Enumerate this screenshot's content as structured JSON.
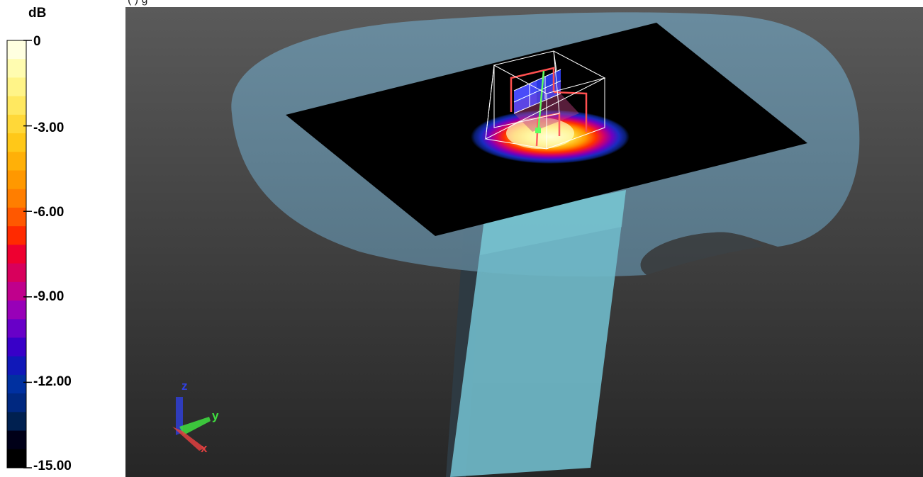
{
  "header": {
    "text": "(         )        g"
  },
  "legend": {
    "unit": "dB",
    "labels": [
      "0",
      "-3.00",
      "-6.00",
      "-9.00",
      "-12.00",
      "-15.00"
    ],
    "colors": [
      "#ffffe0",
      "#fffcb0",
      "#fff488",
      "#ffe860",
      "#ffd838",
      "#ffc818",
      "#ffb008",
      "#ff9800",
      "#ff7e00",
      "#ff5800",
      "#ff2a00",
      "#ee0030",
      "#d8005c",
      "#c0008c",
      "#9800b8",
      "#6800c8",
      "#3800c8",
      "#1018b8",
      "#0030a0",
      "#002880",
      "#002050",
      "#000018",
      "#000000"
    ]
  },
  "scene": {
    "type": "3D field distribution",
    "body_color": "#8ab4c8",
    "plane_color": "#000000",
    "axes": {
      "z": "z",
      "y": "y",
      "x": "x"
    }
  }
}
